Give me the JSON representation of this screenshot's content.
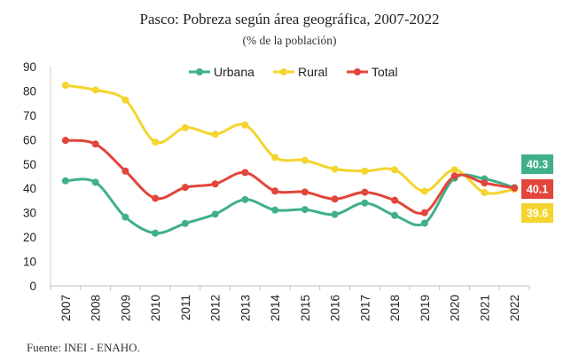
{
  "chart_data": {
    "type": "line",
    "title": "Pasco: Pobreza según área geográfica, 2007-2022",
    "subtitle": "(% de la población)",
    "source": "Fuente: INEI - ENAHO.",
    "x": [
      "2007",
      "2008",
      "2009",
      "2010",
      "2011",
      "2012",
      "2013",
      "2014",
      "2015",
      "2016",
      "2017",
      "2018",
      "2019",
      "2020",
      "2021",
      "2022"
    ],
    "ylim": [
      0,
      90
    ],
    "yticks": [
      0,
      10,
      20,
      30,
      40,
      50,
      60,
      70,
      80,
      90
    ],
    "grid": false,
    "legend": "top-center",
    "series": [
      {
        "name": "Urbana",
        "color": "#3fb08a",
        "values": [
          43.1,
          42.5,
          28.2,
          21.6,
          25.6,
          29.4,
          35.4,
          31.1,
          31.3,
          29.3,
          34.0,
          28.9,
          25.7,
          44.2,
          43.9,
          40.3
        ]
      },
      {
        "name": "Rural",
        "color": "#f4d42f",
        "values": [
          82.3,
          80.4,
          76.3,
          59.0,
          64.9,
          62.2,
          66.0,
          52.7,
          51.5,
          47.9,
          47.1,
          47.6,
          38.8,
          47.6,
          38.3,
          39.6
        ]
      },
      {
        "name": "Total",
        "color": "#e2453a",
        "values": [
          59.7,
          58.2,
          47.1,
          35.9,
          40.4,
          41.8,
          46.5,
          38.9,
          38.5,
          35.6,
          38.4,
          35.1,
          30.0,
          45.0,
          42.2,
          40.1
        ]
      }
    ],
    "end_labels": [
      {
        "series": "Urbana",
        "text": "40.3"
      },
      {
        "series": "Total",
        "text": "40.1"
      },
      {
        "series": "Rural",
        "text": "39.6"
      }
    ]
  }
}
